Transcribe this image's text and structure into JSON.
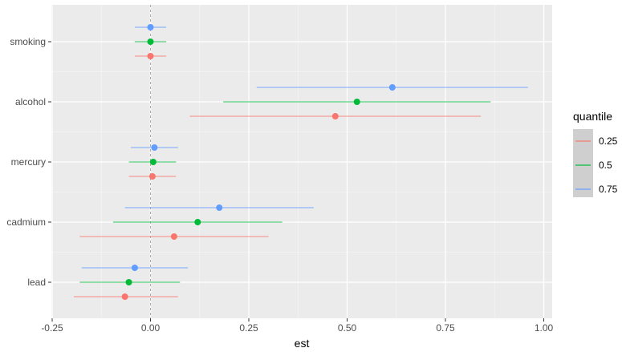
{
  "chart_data": {
    "type": "forest",
    "xlabel": "est",
    "ylabel": "",
    "xlim": [
      -0.25,
      1.0
    ],
    "x_ticks": [
      -0.25,
      0.0,
      0.25,
      0.5,
      0.75,
      1.0
    ],
    "x_tick_labels": [
      "-0.25",
      "0.00",
      "0.25",
      "0.50",
      "0.75",
      "1.00"
    ],
    "categories": [
      "smoking",
      "alcohol",
      "mercury",
      "cadmium",
      "lead"
    ],
    "reference_line": 0,
    "grid": true,
    "legend": {
      "title": "quantile",
      "position": "right"
    },
    "series": [
      {
        "name": "0.25",
        "color": "#F8766D",
        "points": [
          {
            "category": "smoking",
            "est": 0.0,
            "lo": -0.04,
            "hi": 0.04
          },
          {
            "category": "alcohol",
            "est": 0.47,
            "lo": 0.1,
            "hi": 0.84
          },
          {
            "category": "mercury",
            "est": 0.005,
            "lo": -0.055,
            "hi": 0.065
          },
          {
            "category": "cadmium",
            "est": 0.06,
            "lo": -0.18,
            "hi": 0.3
          },
          {
            "category": "lead",
            "est": -0.065,
            "lo": -0.195,
            "hi": 0.07
          }
        ]
      },
      {
        "name": "0.5",
        "color": "#00BA38",
        "points": [
          {
            "category": "smoking",
            "est": 0.0,
            "lo": -0.04,
            "hi": 0.04
          },
          {
            "category": "alcohol",
            "est": 0.525,
            "lo": 0.185,
            "hi": 0.865
          },
          {
            "category": "mercury",
            "est": 0.007,
            "lo": -0.055,
            "hi": 0.065
          },
          {
            "category": "cadmium",
            "est": 0.12,
            "lo": -0.095,
            "hi": 0.335
          },
          {
            "category": "lead",
            "est": -0.055,
            "lo": -0.18,
            "hi": 0.075
          }
        ]
      },
      {
        "name": "0.75",
        "color": "#619CFF",
        "points": [
          {
            "category": "smoking",
            "est": 0.0,
            "lo": -0.04,
            "hi": 0.04
          },
          {
            "category": "alcohol",
            "est": 0.615,
            "lo": 0.27,
            "hi": 0.96
          },
          {
            "category": "mercury",
            "est": 0.01,
            "lo": -0.05,
            "hi": 0.07
          },
          {
            "category": "cadmium",
            "est": 0.175,
            "lo": -0.065,
            "hi": 0.415
          },
          {
            "category": "lead",
            "est": -0.04,
            "lo": -0.175,
            "hi": 0.095
          }
        ]
      }
    ]
  }
}
